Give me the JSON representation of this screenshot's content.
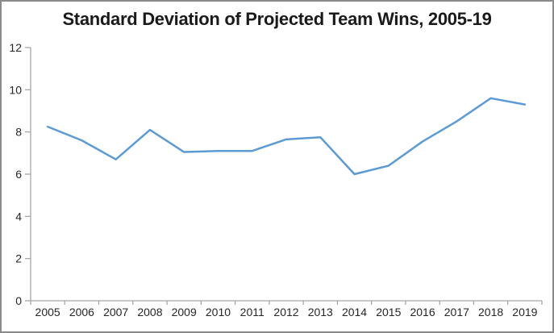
{
  "chart_data": {
    "type": "line",
    "title": "Standard Deviation of Projected Team Wins, 2005-19",
    "categories": [
      "2005",
      "2006",
      "2007",
      "2008",
      "2009",
      "2010",
      "2011",
      "2012",
      "2013",
      "2014",
      "2015",
      "2016",
      "2017",
      "2018",
      "2019"
    ],
    "values": [
      8.25,
      7.6,
      6.7,
      8.1,
      7.05,
      7.1,
      7.1,
      7.65,
      7.75,
      6.0,
      6.4,
      7.55,
      8.5,
      9.6,
      9.3
    ],
    "xlabel": "",
    "ylabel": "",
    "ylim": [
      0,
      12
    ],
    "yticks": [
      0,
      2,
      4,
      6,
      8,
      10,
      12
    ],
    "grid": false,
    "legend": "none"
  },
  "colors": {
    "line": "#5B9BD5",
    "axis": "#A6A6A6",
    "tick_label": "#262626",
    "title": "#1A1A1A",
    "chart_border": "#8A8A8A",
    "background": "#FFFFFF"
  }
}
